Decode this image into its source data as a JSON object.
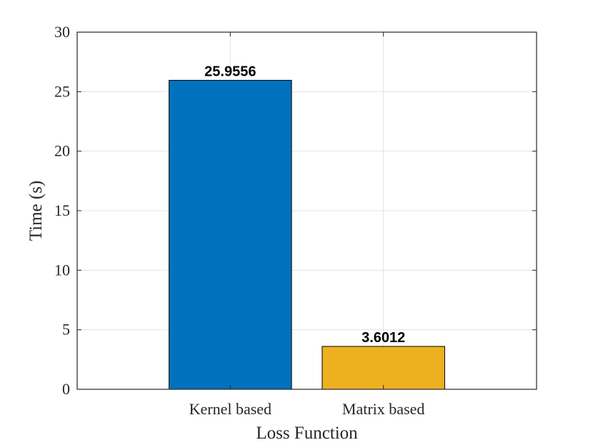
{
  "chart_data": {
    "type": "bar",
    "title": "",
    "xlabel": "Loss Function",
    "ylabel": "Time (s)",
    "categories": [
      "Kernel based",
      "Matrix based"
    ],
    "values": [
      25.9556,
      3.6012
    ],
    "data_labels": [
      "25.9556",
      "3.6012"
    ],
    "bar_colors": [
      "#0072BD",
      "#EDB120"
    ],
    "ylim": [
      0,
      30
    ],
    "yticks": [
      0,
      5,
      10,
      15,
      20,
      25,
      30
    ],
    "grid": true,
    "legend": "none"
  }
}
